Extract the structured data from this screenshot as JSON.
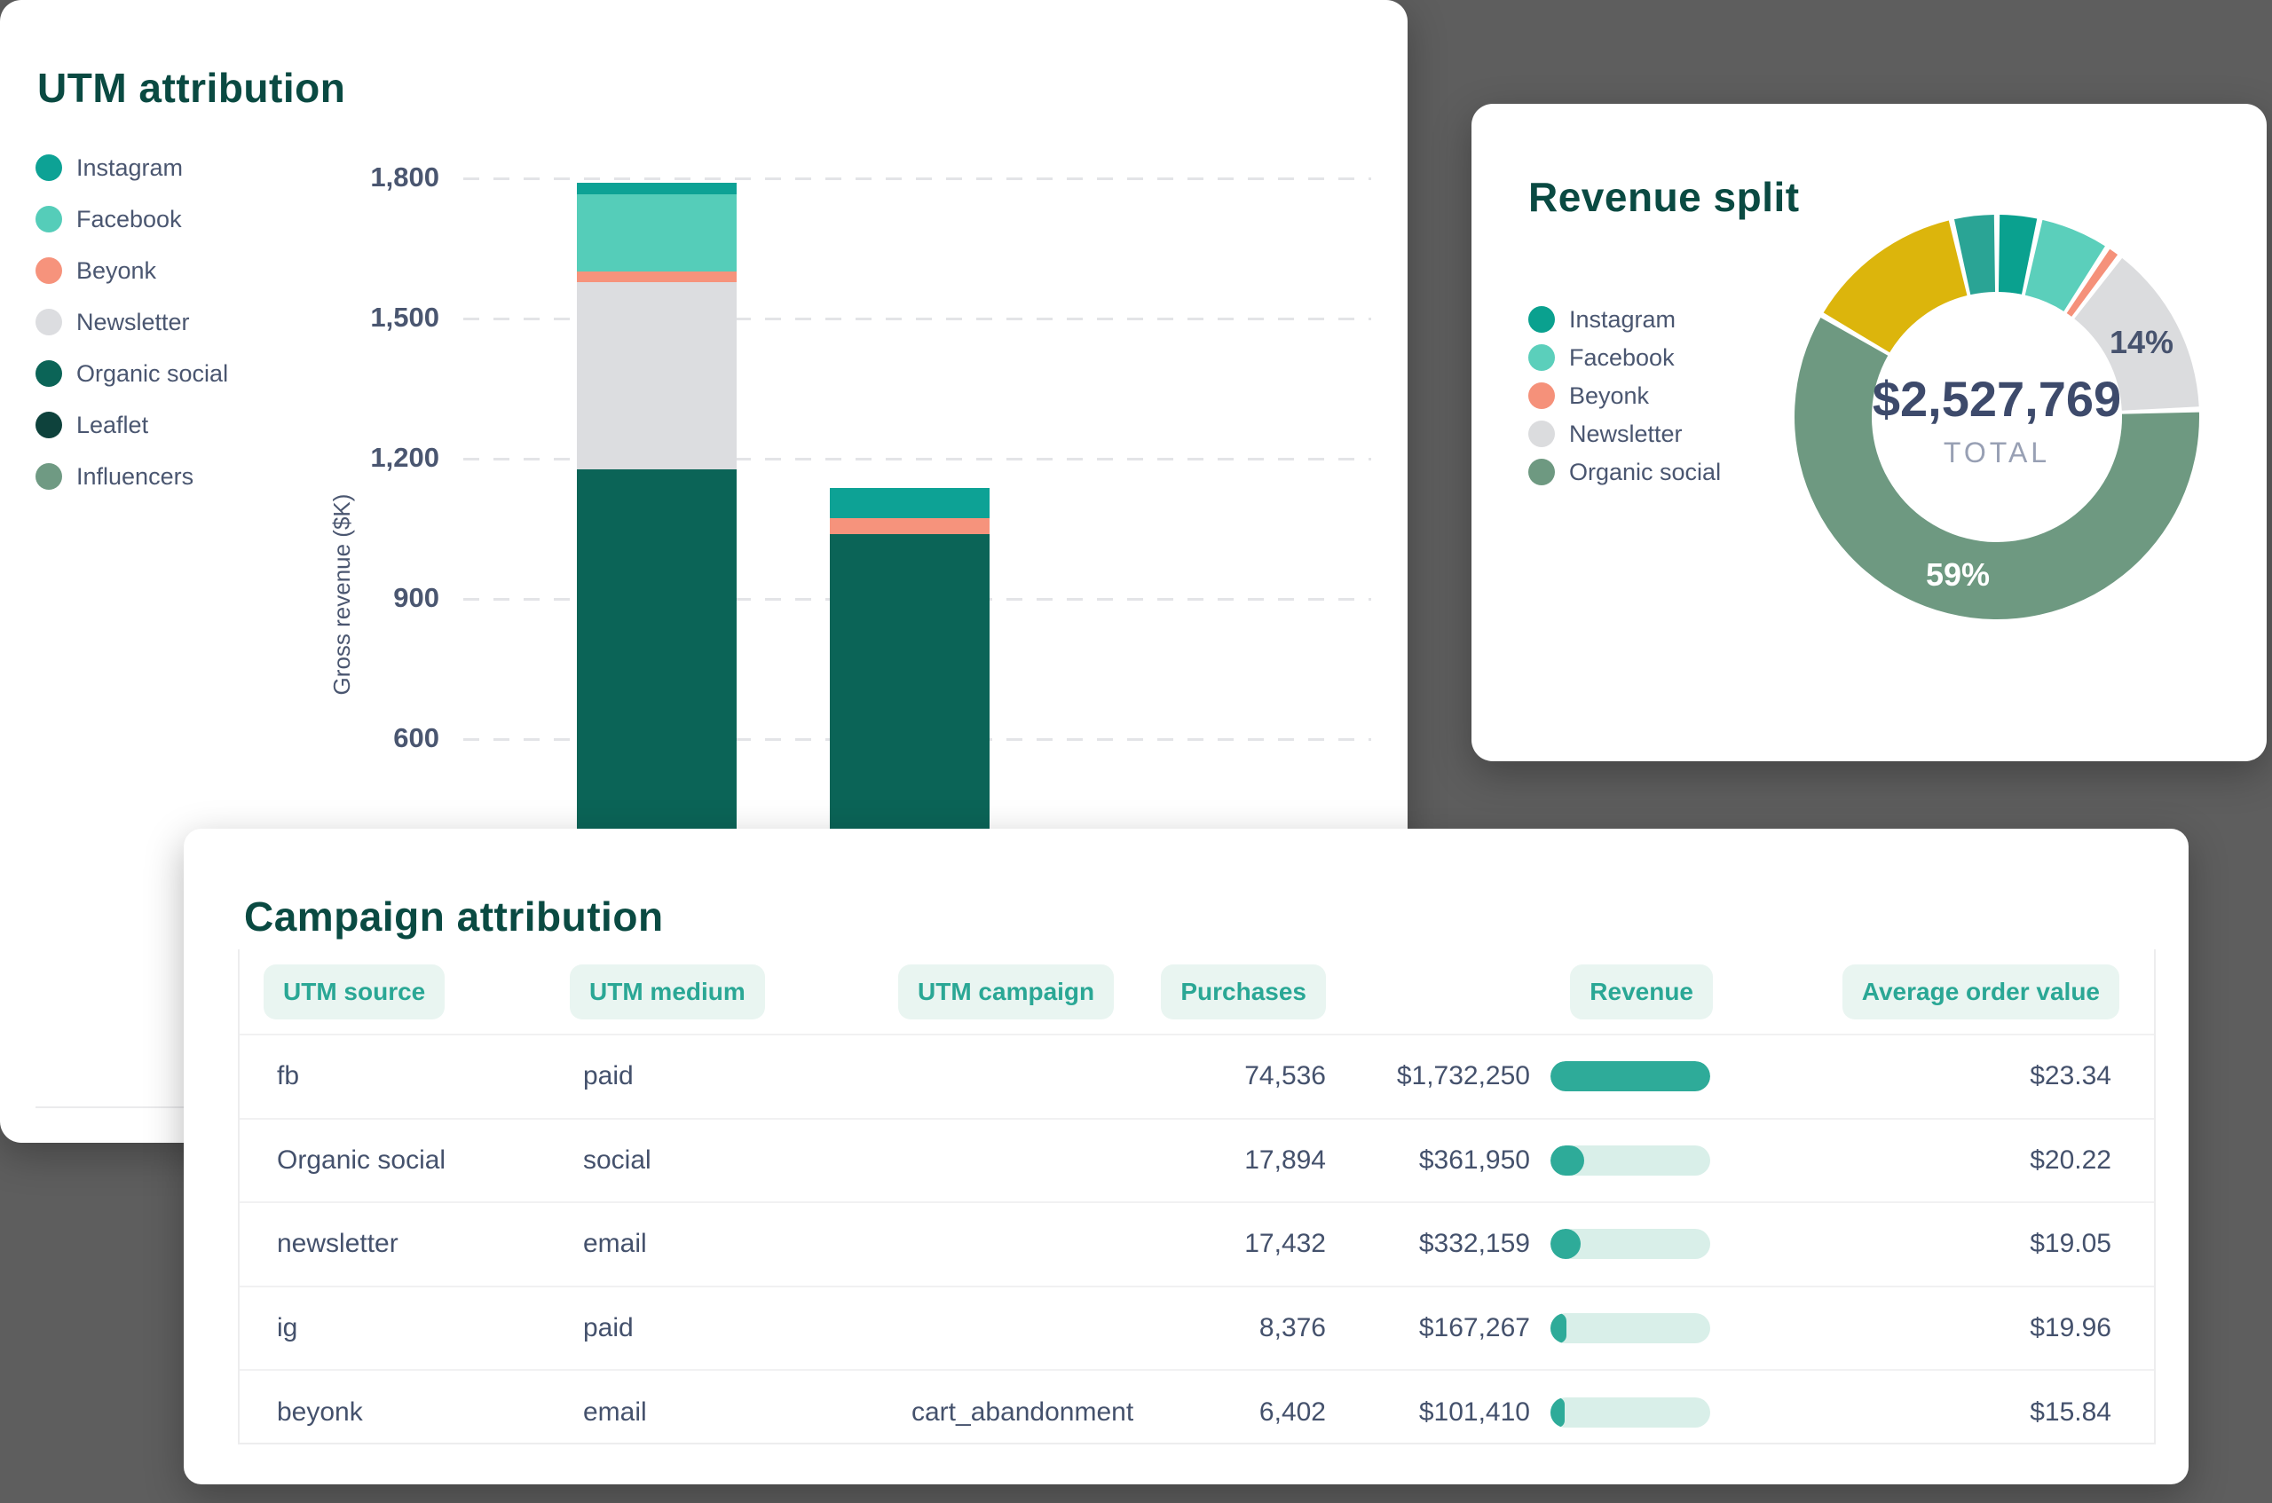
{
  "background_color": "#5e5e5e",
  "utm_card": {
    "title": "UTM attribution",
    "y_axis_label": "Gross revenue ($K)",
    "legend": [
      {
        "label": "Instagram",
        "color": "#0da295"
      },
      {
        "label": "Facebook",
        "color": "#55cdb9"
      },
      {
        "label": "Beyonk",
        "color": "#f6937c"
      },
      {
        "label": "Newsletter",
        "color": "#dcdde0"
      },
      {
        "label": "Organic social",
        "color": "#0b6457"
      },
      {
        "label": "Leaflet",
        "color": "#0e423c"
      },
      {
        "label": "Influencers",
        "color": "#6f9a83"
      }
    ]
  },
  "revenue_card": {
    "title": "Revenue split",
    "legend": [
      {
        "label": "Instagram",
        "color": "#0aa18f"
      },
      {
        "label": "Facebook",
        "color": "#5bcfbb"
      },
      {
        "label": "Beyonk",
        "color": "#f5917a"
      },
      {
        "label": "Newsletter",
        "color": "#dbdcde"
      },
      {
        "label": "Organic social",
        "color": "#6e9981"
      }
    ]
  },
  "campaign_card": {
    "title": "Campaign attribution",
    "columns": [
      "UTM source",
      "UTM medium",
      "UTM campaign",
      "Purchases",
      "Revenue",
      "Average order value"
    ],
    "rows": [
      {
        "source": "fb",
        "medium": "paid",
        "campaign": "",
        "purchases": "74,536",
        "revenue": "$1,732,250",
        "bar_pct": 100,
        "aov": "$23.34"
      },
      {
        "source": "Organic social",
        "medium": "social",
        "campaign": "",
        "purchases": "17,894",
        "revenue": "$361,950",
        "bar_pct": 21,
        "aov": "$20.22"
      },
      {
        "source": "newsletter",
        "medium": "email",
        "campaign": "",
        "purchases": "17,432",
        "revenue": "$332,159",
        "bar_pct": 19,
        "aov": "$19.05"
      },
      {
        "source": "ig",
        "medium": "paid",
        "campaign": "",
        "purchases": "8,376",
        "revenue": "$167,267",
        "bar_pct": 10,
        "aov": "$19.96"
      },
      {
        "source": "beyonk",
        "medium": "email",
        "campaign": "cart_abandonment",
        "purchases": "6,402",
        "revenue": "$101,410",
        "bar_pct": 6,
        "aov": "$15.84"
      }
    ]
  },
  "chart_data": [
    {
      "type": "bar",
      "title": "UTM attribution",
      "stacked": true,
      "xlabel": "",
      "ylabel": "Gross revenue ($K)",
      "ylim": [
        0,
        1800
      ],
      "yticks": [
        {
          "value": 1800,
          "label": "1,800"
        },
        {
          "value": 1500,
          "label": "1,500"
        },
        {
          "value": 1200,
          "label": "1,200"
        },
        {
          "value": 900,
          "label": "900"
        },
        {
          "value": 600,
          "label": "600"
        }
      ],
      "grid": "dashed horizontal",
      "legend_position": "left",
      "categories": [
        "",
        ""
      ],
      "note": "x-axis category labels and bar bottoms hidden behind overlapping card",
      "series": [
        {
          "name": "Instagram",
          "color": "#0da295",
          "values": [
            25,
            65
          ]
        },
        {
          "name": "Facebook",
          "color": "#55cdb9",
          "values": [
            165,
            0
          ]
        },
        {
          "name": "Beyonk",
          "color": "#f6937c",
          "values": [
            22,
            34
          ]
        },
        {
          "name": "Newsletter",
          "color": "#dcdde0",
          "values": [
            400,
            0
          ]
        },
        {
          "name": "Organic social",
          "color": "#0b6457",
          "values": [
            1178,
            1038
          ]
        },
        {
          "name": "Leaflet",
          "color": "#0e423c",
          "values": [
            0,
            0
          ]
        },
        {
          "name": "Influencers",
          "color": "#6f9a83",
          "values": [
            0,
            0
          ]
        }
      ],
      "bar_totals": [
        1790,
        1137
      ]
    },
    {
      "type": "pie",
      "subtype": "donut",
      "title": "Revenue split",
      "center_value": "$2,527,769",
      "center_label": "TOTAL",
      "legend_position": "left",
      "slices": [
        {
          "label": "Instagram",
          "pct": 3.4,
          "color": "#0aa18f",
          "callout": ""
        },
        {
          "label": "Facebook",
          "pct": 5.8,
          "color": "#5bcfbb",
          "callout": ""
        },
        {
          "label": "Beyonk",
          "pct": 1.2,
          "color": "#f5917a",
          "callout": ""
        },
        {
          "label": "Newsletter",
          "pct": 14,
          "color": "#dbdcde",
          "callout": "14%"
        },
        {
          "label": "Organic social",
          "pct": 59,
          "color": "#6e9981",
          "callout": "59%"
        },
        {
          "label": "",
          "pct": 13,
          "color": "#dcb50c",
          "callout": ""
        },
        {
          "label": "",
          "pct": 3.6,
          "color": "#2aa495",
          "callout": ""
        }
      ]
    }
  ]
}
